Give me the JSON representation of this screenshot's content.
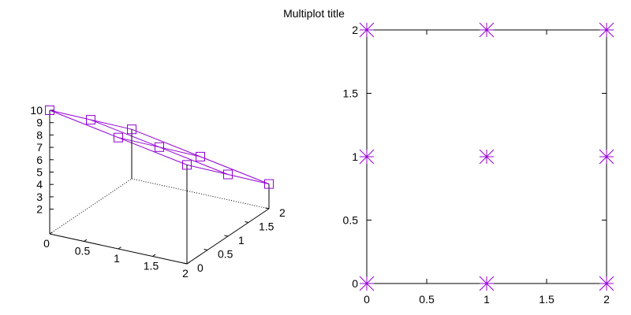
{
  "title": "Multiplot title",
  "colors": {
    "series": "#9400d3",
    "axes": "#000000",
    "background": "#ffffff"
  },
  "chart_data": [
    {
      "type": "surface3d",
      "marker": "square",
      "connect": "lines",
      "x_range": [
        0,
        2
      ],
      "y_range": [
        0,
        2
      ],
      "z_range": [
        0,
        10
      ],
      "x_ticks": [
        0,
        0.5,
        1,
        1.5,
        2
      ],
      "y_ticks": [
        0,
        0.5,
        1,
        1.5,
        2
      ],
      "z_ticks": [
        2,
        3,
        4,
        5,
        6,
        7,
        8,
        9,
        10
      ],
      "x_tick_labels": [
        "0",
        "0.5",
        "1",
        "1.5",
        "2"
      ],
      "y_tick_labels": [
        "0",
        "0.5",
        "1",
        "1.5",
        "2"
      ],
      "z_tick_labels": [
        "2",
        "3",
        "4",
        "5",
        "6",
        "7",
        "8",
        "9",
        "10"
      ],
      "points": [
        {
          "x": 0,
          "y": 0,
          "z": 10
        },
        {
          "x": 1,
          "y": 0,
          "z": 9
        },
        {
          "x": 2,
          "y": 0,
          "z": 8
        },
        {
          "x": 0,
          "y": 1,
          "z": 7
        },
        {
          "x": 1,
          "y": 1,
          "z": 6
        },
        {
          "x": 2,
          "y": 1,
          "z": 5
        },
        {
          "x": 0,
          "y": 2,
          "z": 4
        },
        {
          "x": 1,
          "y": 2,
          "z": 3
        },
        {
          "x": 2,
          "y": 2,
          "z": 2
        }
      ]
    },
    {
      "type": "scatter",
      "marker": "star",
      "xlim": [
        0,
        2
      ],
      "ylim": [
        0,
        2
      ],
      "x_ticks": [
        0,
        0.5,
        1,
        1.5,
        2
      ],
      "y_ticks": [
        0,
        0.5,
        1,
        1.5,
        2
      ],
      "x_tick_labels": [
        "0",
        "0.5",
        "1",
        "1.5",
        "2"
      ],
      "y_tick_labels": [
        "0",
        "0.5",
        "1",
        "1.5",
        "2"
      ],
      "points": [
        {
          "x": 0,
          "y": 0
        },
        {
          "x": 1,
          "y": 0
        },
        {
          "x": 2,
          "y": 0
        },
        {
          "x": 0,
          "y": 1
        },
        {
          "x": 1,
          "y": 1
        },
        {
          "x": 2,
          "y": 1
        },
        {
          "x": 0,
          "y": 2
        },
        {
          "x": 1,
          "y": 2
        },
        {
          "x": 2,
          "y": 2
        }
      ]
    }
  ]
}
